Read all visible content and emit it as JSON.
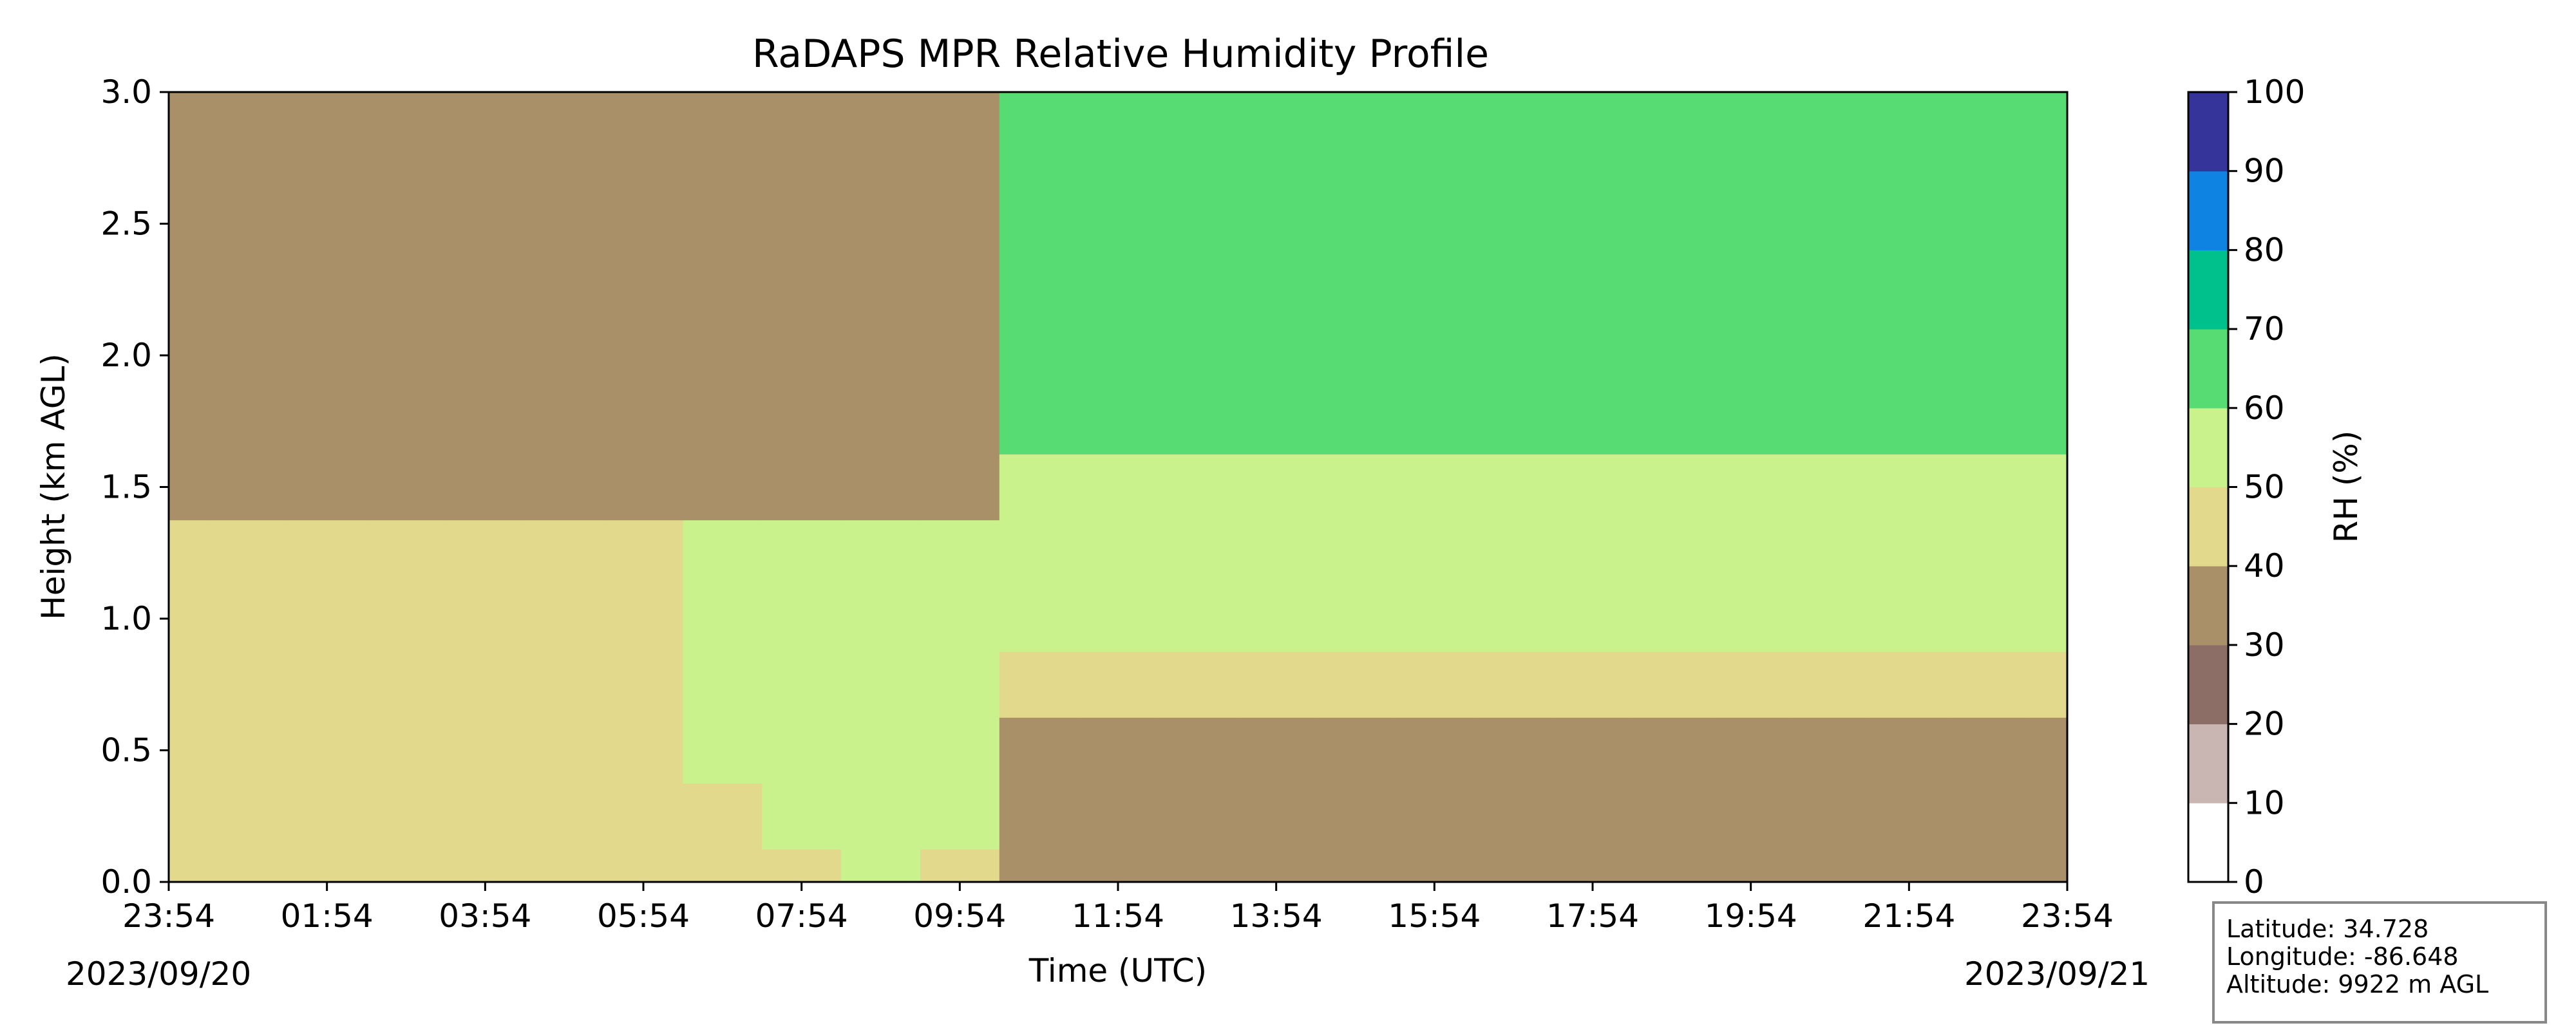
{
  "chart_data": {
    "type": "heatmap",
    "title": "RaDAPS MPR Relative Humidity Profile",
    "xlabel": "Time (UTC)",
    "ylabel": "Height (km AGL)",
    "x_ticks": [
      "23:54",
      "01:54",
      "03:54",
      "05:54",
      "07:54",
      "09:54",
      "11:54",
      "13:54",
      "15:54",
      "17:54",
      "19:54",
      "21:54",
      "23:54"
    ],
    "y_ticks": [
      "0.0",
      "0.5",
      "1.0",
      "1.5",
      "2.0",
      "2.5",
      "3.0"
    ],
    "ylim": [
      0,
      3.0
    ],
    "start_date": "2023/09/20",
    "end_date": "2023/09/21",
    "colorbar": {
      "label": "RH (%)",
      "ticks": [
        "0",
        "10",
        "20",
        "30",
        "40",
        "50",
        "60",
        "70",
        "80",
        "90",
        "100"
      ],
      "levels": [
        0,
        10,
        20,
        30,
        40,
        50,
        60,
        70,
        80,
        90,
        100
      ],
      "colors": [
        "#ffffff",
        "#c9b5b2",
        "#8d6e66",
        "#aa9068",
        "#e2d98d",
        "#c9f28c",
        "#57db73",
        "#00c08c",
        "#0e83e1",
        "#34349a"
      ]
    },
    "hours": [
      0,
      1,
      2,
      3,
      4,
      5,
      6,
      7,
      8,
      9,
      10,
      11,
      12,
      13,
      14,
      15,
      16,
      17,
      18,
      19,
      20,
      21,
      22,
      23,
      24
    ],
    "heights_km": [
      0.0,
      0.25,
      0.5,
      0.75,
      1.0,
      1.25,
      1.5,
      1.75,
      2.0,
      2.25,
      2.5,
      2.75,
      3.0
    ],
    "rh_grid": [
      [
        45,
        45,
        45,
        45,
        45,
        45,
        45,
        47,
        48,
        50,
        48,
        36,
        36,
        36,
        36,
        36,
        36,
        36,
        36,
        36,
        36,
        36,
        36,
        36,
        36
      ],
      [
        45,
        45,
        45,
        45,
        45,
        45,
        45,
        48,
        55,
        55,
        55,
        38,
        38,
        38,
        38,
        38,
        38,
        38,
        38,
        38,
        38,
        38,
        38,
        38,
        38
      ],
      [
        45,
        45,
        45,
        45,
        45,
        45,
        46,
        55,
        55,
        55,
        55,
        38,
        38,
        38,
        38,
        38,
        38,
        38,
        38,
        38,
        38,
        38,
        38,
        38,
        38
      ],
      [
        45,
        45,
        45,
        45,
        45,
        45,
        46,
        55,
        55,
        55,
        55,
        45,
        45,
        45,
        45,
        45,
        45,
        45,
        45,
        45,
        45,
        45,
        45,
        45,
        45
      ],
      [
        45,
        45,
        45,
        45,
        45,
        45,
        46,
        55,
        55,
        55,
        55,
        55,
        55,
        55,
        55,
        55,
        55,
        55,
        55,
        55,
        55,
        55,
        55,
        55,
        55
      ],
      [
        45,
        45,
        45,
        45,
        45,
        45,
        46,
        55,
        55,
        55,
        55,
        55,
        55,
        55,
        55,
        55,
        55,
        55,
        55,
        55,
        55,
        55,
        55,
        55,
        55
      ],
      [
        36,
        36,
        36,
        36,
        36,
        36,
        36,
        36,
        36,
        36,
        36,
        55,
        55,
        55,
        55,
        55,
        55,
        55,
        55,
        55,
        55,
        55,
        55,
        55,
        55
      ],
      [
        36,
        36,
        36,
        36,
        36,
        36,
        36,
        36,
        36,
        36,
        36,
        65,
        65,
        65,
        65,
        65,
        65,
        65,
        65,
        65,
        65,
        65,
        65,
        65,
        65
      ],
      [
        36,
        36,
        36,
        36,
        36,
        36,
        36,
        36,
        36,
        36,
        36,
        65,
        65,
        65,
        65,
        65,
        65,
        65,
        65,
        65,
        65,
        65,
        65,
        65,
        65
      ],
      [
        36,
        36,
        36,
        36,
        36,
        36,
        36,
        36,
        36,
        36,
        36,
        65,
        65,
        65,
        65,
        65,
        65,
        65,
        65,
        65,
        65,
        65,
        65,
        65,
        65
      ],
      [
        36,
        36,
        36,
        36,
        36,
        36,
        36,
        36,
        36,
        36,
        36,
        65,
        65,
        65,
        65,
        65,
        65,
        65,
        65,
        65,
        65,
        65,
        65,
        65,
        65
      ],
      [
        36,
        36,
        36,
        36,
        36,
        36,
        36,
        36,
        36,
        36,
        36,
        65,
        65,
        65,
        65,
        65,
        65,
        65,
        65,
        65,
        65,
        65,
        65,
        65,
        65
      ],
      [
        36,
        36,
        36,
        36,
        36,
        36,
        36,
        36,
        36,
        36,
        36,
        65,
        65,
        65,
        65,
        65,
        65,
        65,
        65,
        65,
        65,
        65,
        65,
        65,
        65
      ]
    ]
  },
  "info_box": {
    "latitude": "Latitude: 34.728",
    "longitude": "Longitude: -86.648",
    "altitude": "Altitude: 9922 m AGL"
  }
}
